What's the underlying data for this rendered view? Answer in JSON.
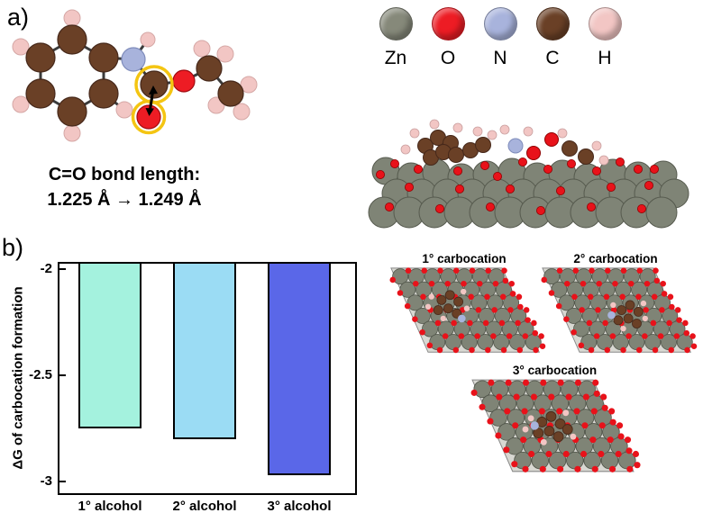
{
  "panel_a": {
    "label": "a)",
    "caption_line1": "C=O bond length:",
    "caption_line2": "1.225 Å → 1.249 Å"
  },
  "legend": {
    "items": [
      {
        "symbol": "Zn",
        "color": "#86897a"
      },
      {
        "symbol": "O",
        "color": "#ed1c24"
      },
      {
        "symbol": "N",
        "color": "#a8b3dc"
      },
      {
        "symbol": "C",
        "color": "#6a4026"
      },
      {
        "symbol": "H",
        "color": "#f2c6c4"
      }
    ]
  },
  "panel_b": {
    "label": "b)"
  },
  "chart_data": {
    "type": "bar",
    "categories": [
      "1° alcohol",
      "2° alcohol",
      "3° alcohol"
    ],
    "values": [
      -2.75,
      -2.8,
      -2.97
    ],
    "bar_colors": [
      "#a4f2de",
      "#9bdcf4",
      "#5a67e8"
    ],
    "title": "",
    "xlabel": "",
    "ylabel": "ΔG of carbocation formation",
    "yticks": [
      -2,
      -2.5,
      -3
    ],
    "ylim": [
      -2,
      -3.055
    ],
    "grid": false,
    "legend_position": "none",
    "bars_hang_from_axis_top": true
  },
  "carbocation_views": [
    {
      "label": "1° carbocation"
    },
    {
      "label": "2° carbocation"
    },
    {
      "label": "3° carbocation"
    }
  ]
}
